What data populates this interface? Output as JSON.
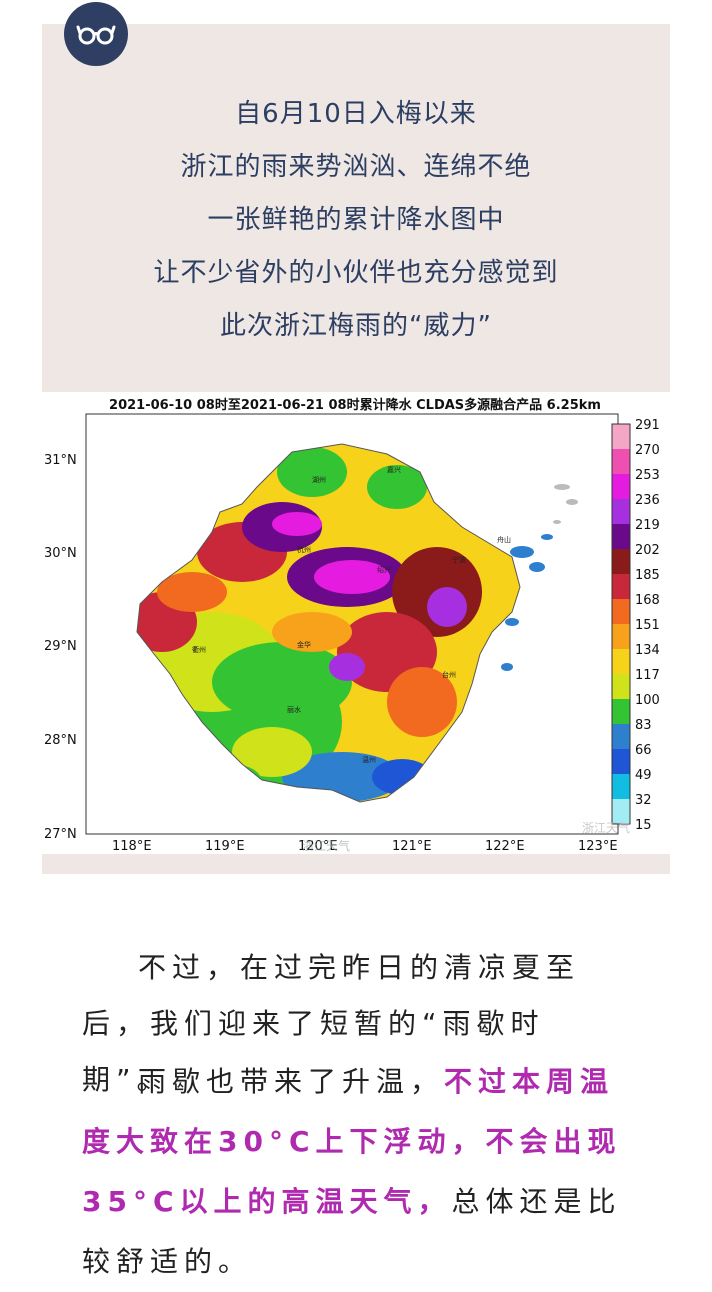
{
  "intro": {
    "lines": [
      "自6月10日入梅以来",
      "浙江的雨来势汹汹、连绵不绝",
      "一张鲜艳的累计降水图中",
      "让不少省外的小伙伴也充分感觉到",
      "此次浙江梅雨的“威力”"
    ]
  },
  "badge": {
    "icon": "glasses-icon",
    "color": "#2f3f63"
  },
  "map": {
    "title": "2021-06-10 08时至2021-06-21 08时累计降水  CLDAS多源融合产品 6.25km",
    "lat_labels": [
      "31°N",
      "30°N",
      "29°N",
      "28°N",
      "27°N"
    ],
    "lon_labels": [
      "118°E",
      "119°E",
      "120°E",
      "121°E",
      "122°E",
      "123°E"
    ],
    "colorbar": {
      "labels": [
        "291",
        "270",
        "253",
        "236",
        "219",
        "202",
        "185",
        "168",
        "151",
        "134",
        "117",
        "100",
        "83",
        "66",
        "49",
        "32",
        "15"
      ],
      "colors": [
        "#f4a6c6",
        "#ef4fb0",
        "#e51ce0",
        "#a630e0",
        "#6a0a8a",
        "#8b1a1a",
        "#c8283a",
        "#f26a20",
        "#f7a21a",
        "#f7d21a",
        "#cfe21a",
        "#33c333",
        "#2f7fcf",
        "#1f56d6",
        "#12bde2",
        "#a4ecf4"
      ]
    },
    "cities": [
      "嘉兴",
      "湖州",
      "杭州",
      "绍兴",
      "宁波",
      "舟山",
      "衢州",
      "金华",
      "台州",
      "丽水",
      "温州"
    ],
    "watermark": "浙江天气"
  },
  "body": {
    "p1": "不过，在过完昨日的清凉夏至后，我们迎来了短暂的“雨歇时期”。",
    "p2_a": "雨歇也带来了升温，",
    "p2_b": "不过本周温度大致在30°C上下浮动，不会出现35°C以上的高温天气，",
    "p2_c": "总体还是比较舒适的。"
  }
}
